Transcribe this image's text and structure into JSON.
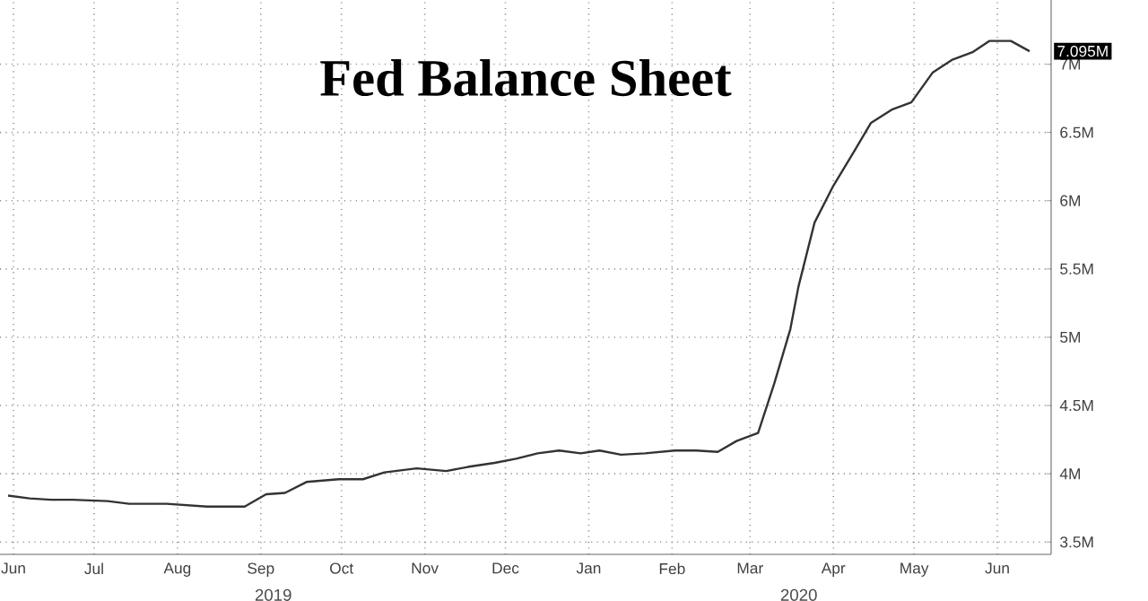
{
  "chart_data": {
    "type": "line",
    "title": "Fed Balance Sheet",
    "x": [
      "2019-06-13",
      "2019-06-21",
      "2019-06-29",
      "2019-07-07",
      "2019-07-20",
      "2019-07-28",
      "2019-08-11",
      "2019-08-26",
      "2019-09-09",
      "2019-09-17",
      "2019-09-24",
      "2019-10-02",
      "2019-10-14",
      "2019-10-23",
      "2019-10-31",
      "2019-11-12",
      "2019-11-23",
      "2019-12-01",
      "2019-12-11",
      "2019-12-19",
      "2019-12-27",
      "2020-01-04",
      "2020-01-12",
      "2020-01-19",
      "2020-01-27",
      "2020-02-05",
      "2020-02-16",
      "2020-02-24",
      "2020-03-03",
      "2020-03-10",
      "2020-03-18",
      "2020-03-24",
      "2020-03-30",
      "2020-04-02",
      "2020-04-08",
      "2020-04-15",
      "2020-04-23",
      "2020-04-29",
      "2020-05-07",
      "2020-05-14",
      "2020-05-22",
      "2020-05-29",
      "2020-06-06",
      "2020-06-12",
      "2020-06-20",
      "2020-06-27"
    ],
    "series": [
      {
        "color": "#333333",
        "values": [
          3.84,
          3.82,
          3.81,
          3.81,
          3.8,
          3.78,
          3.78,
          3.76,
          3.76,
          3.85,
          3.86,
          3.94,
          3.96,
          3.96,
          4.01,
          4.04,
          4.02,
          4.05,
          4.08,
          4.11,
          4.15,
          4.17,
          4.15,
          4.17,
          4.14,
          4.15,
          4.17,
          4.17,
          4.16,
          4.24,
          4.3,
          4.66,
          5.06,
          5.37,
          5.84,
          6.11,
          6.37,
          6.57,
          6.67,
          6.72,
          6.94,
          7.03,
          7.09,
          7.17,
          7.17,
          7.095
        ]
      }
    ],
    "xlim": [
      "2019-06-10",
      "2020-07-05"
    ],
    "xticks": [
      {
        "value": "2019-06-15",
        "label": "Jun"
      },
      {
        "value": "2019-07-15",
        "label": "Jul"
      },
      {
        "value": "2019-08-15",
        "label": "Aug"
      },
      {
        "value": "2019-09-15",
        "label": "Sep"
      },
      {
        "value": "2019-10-15",
        "label": "Oct"
      },
      {
        "value": "2019-11-15",
        "label": "Nov"
      },
      {
        "value": "2019-12-15",
        "label": "Dec"
      },
      {
        "value": "2020-01-15",
        "label": "Jan"
      },
      {
        "value": "2020-02-15",
        "label": "Feb"
      },
      {
        "value": "2020-03-15",
        "label": "Mar"
      },
      {
        "value": "2020-04-15",
        "label": "Apr"
      },
      {
        "value": "2020-05-15",
        "label": "May"
      },
      {
        "value": "2020-06-15",
        "label": "Jun"
      }
    ],
    "ylim": [
      3.41,
      7.47
    ],
    "yticks": [
      {
        "value": 3.5,
        "label": "3.5M"
      },
      {
        "value": 4,
        "label": "4M"
      },
      {
        "value": 4.5,
        "label": "4.5M"
      },
      {
        "value": 5,
        "label": "5M"
      },
      {
        "value": 5.5,
        "label": "5.5M"
      },
      {
        "value": 6,
        "label": "6M"
      },
      {
        "value": 6.5,
        "label": "6.5M"
      },
      {
        "value": 7,
        "label": "7M"
      }
    ],
    "grid": true,
    "annotations": [
      "2019",
      "2020",
      {
        "text": "7.095M",
        "x": "2020-06-27",
        "y": 7.095
      }
    ]
  }
}
